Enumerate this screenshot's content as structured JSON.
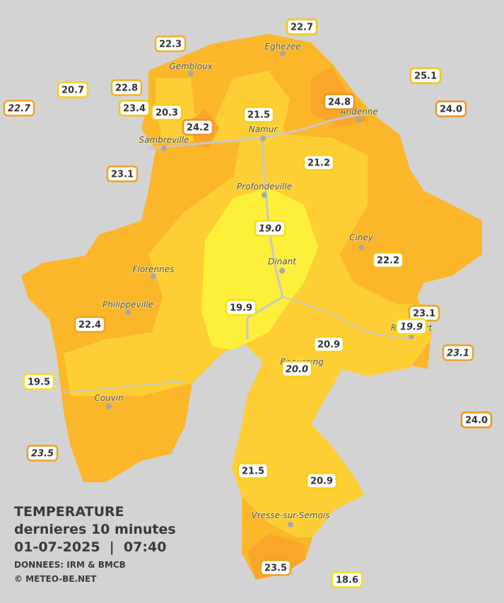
{
  "header": {
    "title": "TEMPERATURE",
    "subtitle": "dernieres 10 minutes",
    "timestamp": "01-07-2025  |  07:40",
    "source": "DONNEES: IRM & BMCB",
    "copyright": "© METEO-BE.NET"
  },
  "cities": [
    "Eghezee",
    "Gembloux",
    "Andenne",
    "Namur",
    "Sambreville",
    "Profondeville",
    "Ciney",
    "Florennes",
    "Dinant",
    "Philippeville",
    "Rochefort",
    "Beauraing",
    "Couvin",
    "Vresse-sur-Semois"
  ],
  "stations": [
    {
      "label": "22.7",
      "italic": false,
      "color": "#f5c518"
    },
    {
      "label": "22.3",
      "italic": false,
      "color": "#f5b21e"
    },
    {
      "label": "20.7",
      "italic": false,
      "color": "#f5d018"
    },
    {
      "label": "22.8",
      "italic": false,
      "color": "#f5b21e"
    },
    {
      "label": "22.7",
      "italic": true,
      "color": "#f5a21e"
    },
    {
      "label": "23.4",
      "italic": false,
      "color": "#f5c518"
    },
    {
      "label": "20.3",
      "italic": false,
      "color": "#f5d018"
    },
    {
      "label": "24.2",
      "italic": false,
      "color": "#f0951e"
    },
    {
      "label": "21.5",
      "italic": false,
      "color": "#f5d018"
    },
    {
      "label": "24.8",
      "italic": false,
      "color": "#f0951e"
    },
    {
      "label": "25.1",
      "italic": false,
      "color": "#f5c518"
    },
    {
      "label": "24.0",
      "italic": false,
      "color": "#f0951e"
    },
    {
      "label": "21.2",
      "italic": false,
      "color": "#f5d018"
    },
    {
      "label": "23.1",
      "italic": false,
      "color": "#f0a21e"
    },
    {
      "label": "19.0",
      "italic": true,
      "color": "#f5e018"
    },
    {
      "label": "22.2",
      "italic": false,
      "color": "#f5c518"
    },
    {
      "label": "23.1",
      "italic": false,
      "color": "#f0a21e"
    },
    {
      "label": "19.9",
      "italic": true,
      "color": "#f5e018"
    },
    {
      "label": "19.9",
      "italic": false,
      "color": "#f5e018"
    },
    {
      "label": "22.4",
      "italic": false,
      "color": "#f0a21e"
    },
    {
      "label": "20.9",
      "italic": false,
      "color": "#f5d018"
    },
    {
      "label": "20.0",
      "italic": true,
      "color": "#f5d018"
    },
    {
      "label": "23.1",
      "italic": true,
      "color": "#f0a21e"
    },
    {
      "label": "19.5",
      "italic": false,
      "color": "#f5e018"
    },
    {
      "label": "24.0",
      "italic": false,
      "color": "#f0951e"
    },
    {
      "label": "23.5",
      "italic": true,
      "color": "#f0a21e"
    },
    {
      "label": "21.5",
      "italic": false,
      "color": "#f5d018"
    },
    {
      "label": "20.9",
      "italic": false,
      "color": "#f5d018"
    },
    {
      "label": "23.5",
      "italic": false,
      "color": "#f0a21e"
    },
    {
      "label": "18.6",
      "italic": false,
      "color": "#f5e018"
    }
  ]
}
